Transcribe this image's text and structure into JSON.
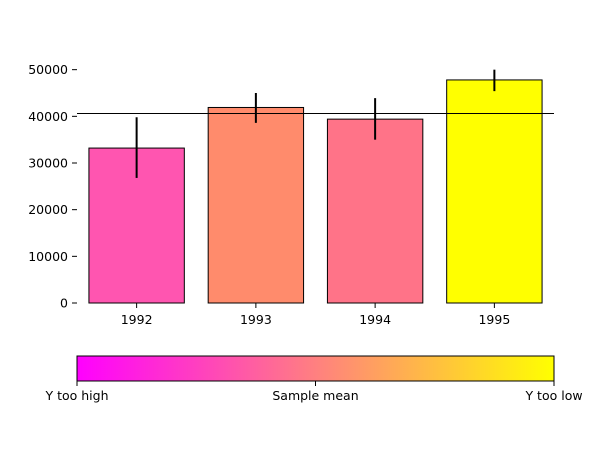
{
  "chart_data": {
    "type": "bar",
    "title": "",
    "xlabel": "",
    "ylabel": "",
    "categories": [
      "1992",
      "1993",
      "1994",
      "1995"
    ],
    "values": [
      33200,
      41900,
      39400,
      47800
    ],
    "error_low": [
      26800,
      38600,
      35000,
      45400
    ],
    "error_high": [
      39800,
      45000,
      43900,
      50000
    ],
    "bar_colors": [
      "#ff55b0",
      "#ff8b6c",
      "#ff7388",
      "#ffff00"
    ],
    "yticks": [
      0,
      10000,
      20000,
      30000,
      40000,
      50000
    ],
    "ylim": [
      0,
      52500
    ],
    "reference_line": 40600,
    "grid": false,
    "colorbar": {
      "labels": [
        "Y too high",
        "Sample mean",
        "Y too low"
      ],
      "stops": [
        "#ff00ff",
        "#ff3fc0",
        "#ff8080",
        "#ffbf40",
        "#ffff00"
      ]
    }
  }
}
